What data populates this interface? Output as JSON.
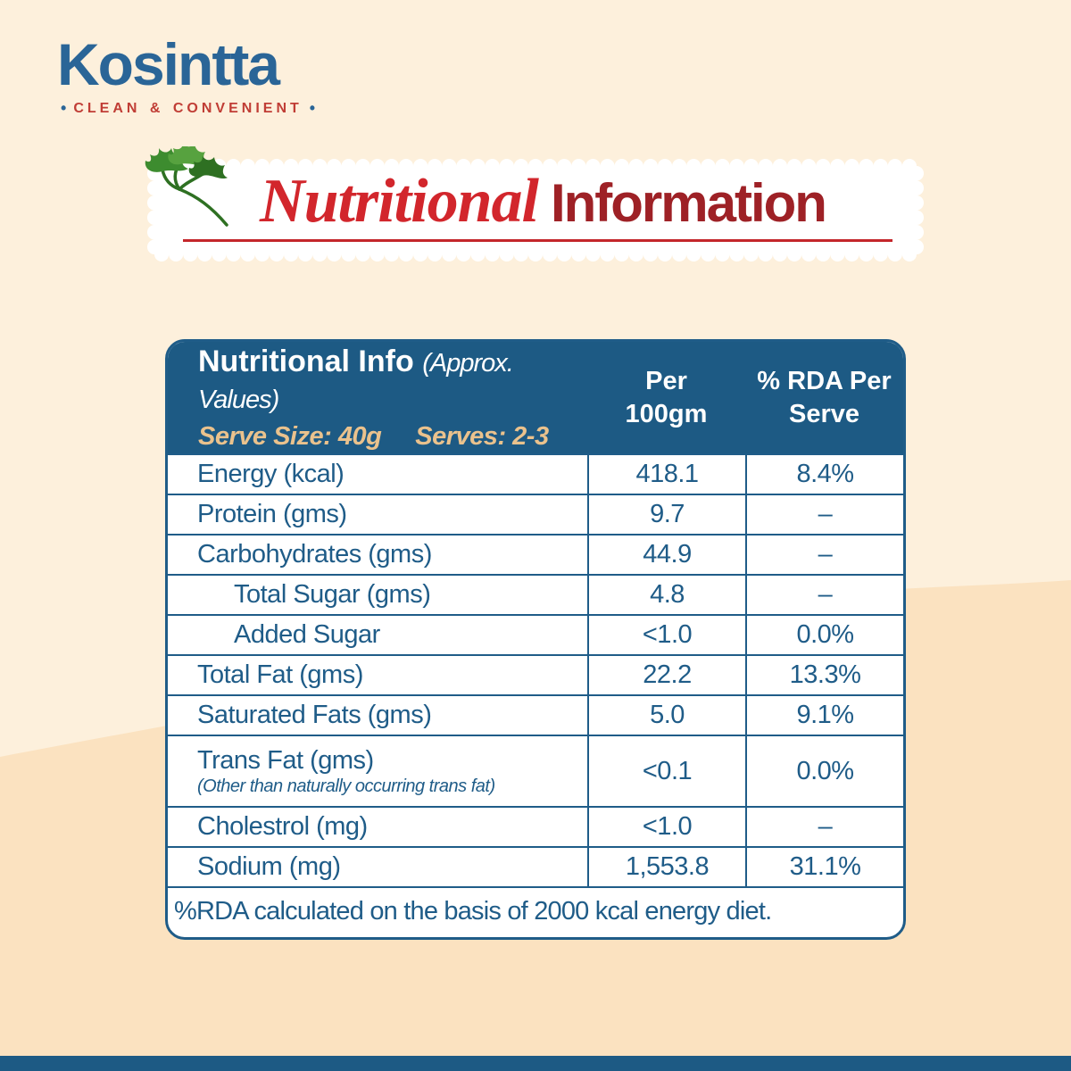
{
  "logo": {
    "name": "Kosintta",
    "tagline": "CLEAN & CONVENIENT",
    "dot": "•"
  },
  "title": {
    "word_script": "Nutritional",
    "word_bold": "Information"
  },
  "table": {
    "header": {
      "title": "Nutritional Info",
      "subtitle": "(Approx. Values)",
      "serve_size": "Serve Size: 40g",
      "serves": "Serves: 2-3",
      "col_per": "Per\n100gm",
      "col_rda": "% RDA Per\nServe"
    },
    "rows": [
      {
        "label": "Energy (kcal)",
        "per100": "418.1",
        "rda": "8.4%",
        "indent": false
      },
      {
        "label": "Protein (gms)",
        "per100": "9.7",
        "rda": "–",
        "indent": false
      },
      {
        "label": "Carbohydrates (gms)",
        "per100": "44.9",
        "rda": "–",
        "indent": false
      },
      {
        "label": "Total Sugar (gms)",
        "per100": "4.8",
        "rda": "–",
        "indent": true
      },
      {
        "label": "Added Sugar",
        "per100": "<1.0",
        "rda": "0.0%",
        "indent": true
      },
      {
        "label": "Total Fat (gms)",
        "per100": "22.2",
        "rda": "13.3%",
        "indent": false
      },
      {
        "label": "Saturated Fats (gms)",
        "per100": "5.0",
        "rda": "9.1%",
        "indent": false
      },
      {
        "label": "Trans Fat (gms)",
        "note": "(Other than naturally occurring trans fat)",
        "per100": "<0.1",
        "rda": "0.0%",
        "indent": false
      },
      {
        "label": "Cholestrol (mg)",
        "per100": "<1.0",
        "rda": "–",
        "indent": false
      },
      {
        "label": "Sodium (mg)",
        "per100": "1,553.8",
        "rda": "31.1%",
        "indent": false
      }
    ],
    "footnote": "%RDA calculated on the basis of 2000 kcal energy diet."
  },
  "colors": {
    "cream": "#fdf0dc",
    "peach": "#fbe2c0",
    "table-blue": "#1f5c88",
    "header-blue": "#1d5a84",
    "bar-blue": "#1d5a84",
    "brand-blue": "#2a6597",
    "tagline-red": "#c03d35",
    "title-red": "#d2262c",
    "title-dark-red": "#9e2126",
    "underline-red": "#c4262b",
    "tan": "#eac28d",
    "leaf-green": "#3d8c2f",
    "leaf-green-dark": "#2e7022",
    "leaf-green-light": "#57a23f",
    "white": "#ffffff"
  }
}
